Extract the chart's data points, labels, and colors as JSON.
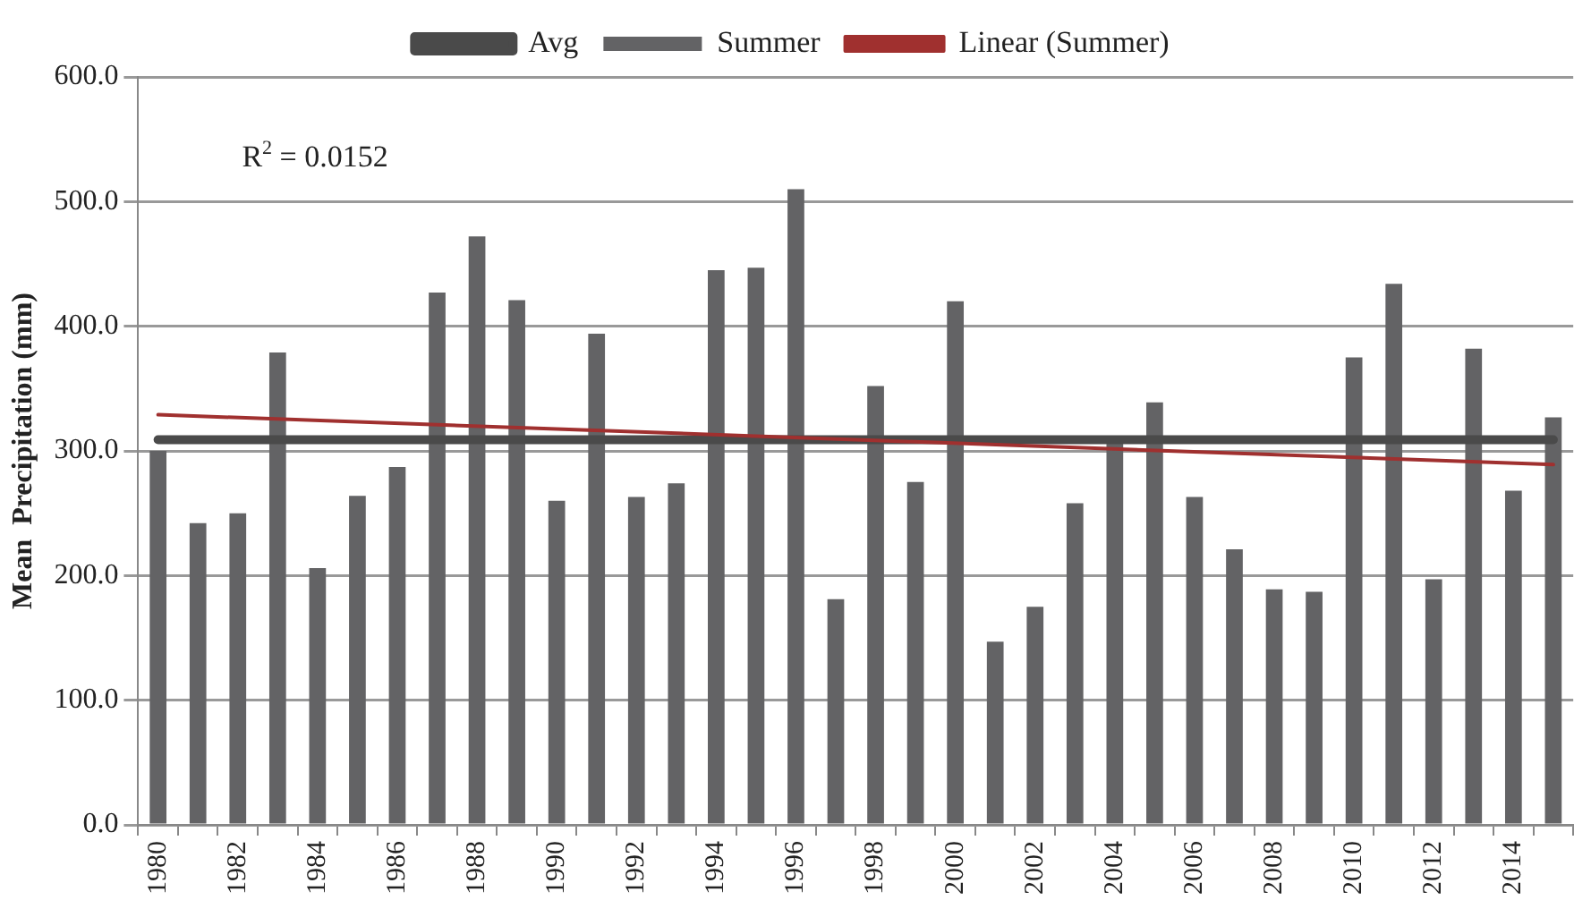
{
  "chart_data": {
    "type": "bar",
    "ylabel": "Mean  Precipitation (mm)",
    "categories": [
      "1980",
      null,
      "1982",
      null,
      "1984",
      null,
      "1986",
      null,
      "1988",
      null,
      "1990",
      null,
      "1992",
      null,
      "1994",
      null,
      "1996",
      null,
      "1998",
      null,
      "2000",
      null,
      "2002",
      null,
      "2004",
      null,
      "2006",
      null,
      "2008",
      null,
      "2010",
      null,
      "2012",
      null,
      "2014",
      null
    ],
    "series": [
      {
        "name": "Avg",
        "type": "line",
        "color": "#4a4a4a",
        "values": [
          309,
          309,
          309,
          309,
          309,
          309,
          309,
          309,
          309,
          309,
          309,
          309,
          309,
          309,
          309,
          309,
          309,
          309,
          309,
          309,
          309,
          309,
          309,
          309,
          309,
          309,
          309,
          309,
          309,
          309,
          309,
          309,
          309,
          309,
          309,
          309
        ]
      },
      {
        "name": "Summer",
        "color": "#636365",
        "values": [
          300,
          242,
          250,
          379,
          206,
          264,
          287,
          427,
          472,
          421,
          260,
          394,
          263,
          274,
          445,
          447,
          510,
          181,
          352,
          275,
          420,
          147,
          175,
          258,
          306,
          339,
          263,
          221,
          189,
          187,
          375,
          434,
          197,
          382,
          268,
          327
        ]
      },
      {
        "name": "Linear (Summer)",
        "type": "line",
        "color": "#a0302f",
        "values": [
          329,
          null,
          null,
          null,
          null,
          null,
          null,
          null,
          null,
          null,
          null,
          null,
          null,
          null,
          null,
          null,
          null,
          null,
          null,
          null,
          null,
          null,
          null,
          null,
          null,
          null,
          null,
          null,
          null,
          null,
          null,
          null,
          null,
          null,
          null,
          289
        ]
      }
    ],
    "ylim": [
      0,
      600
    ],
    "yticks": [
      {
        "value": 0,
        "label": "0.0"
      },
      {
        "value": 100,
        "label": "100.0"
      },
      {
        "value": 200,
        "label": "200.0"
      },
      {
        "value": 300,
        "label": "300.0"
      },
      {
        "value": 400,
        "label": "400.0"
      },
      {
        "value": 500,
        "label": "500.0"
      },
      {
        "value": 600,
        "label": "600.0"
      }
    ],
    "grid": "y",
    "legend": "top",
    "marker": "none",
    "annotations": [
      "R$^{2}$ = 0.0152"
    ]
  }
}
